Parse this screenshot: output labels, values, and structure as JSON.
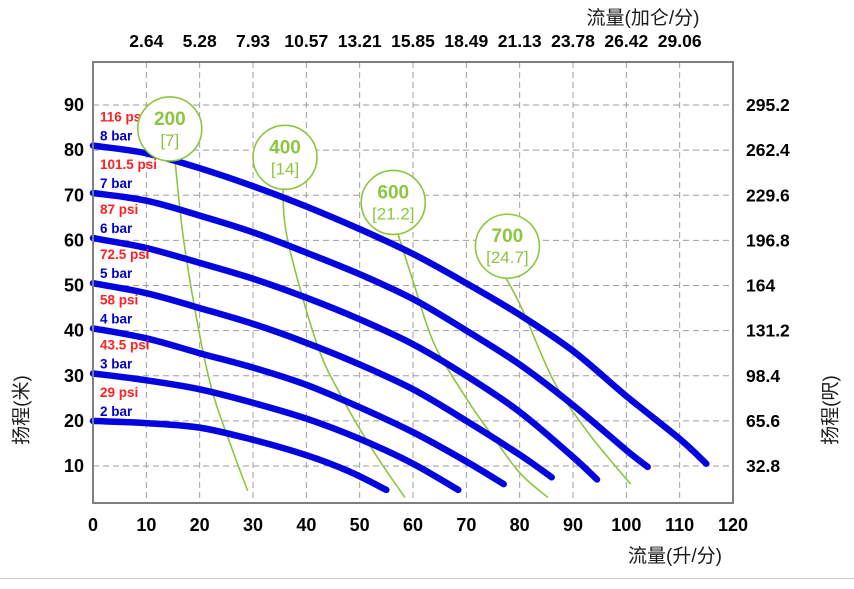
{
  "chart_data": {
    "type": "line",
    "title": "",
    "grid": "dashed",
    "legend_position": "none",
    "x_axis_bottom": {
      "label": "流量(升/分)",
      "min": 0,
      "max": 120,
      "ticks": [
        "0",
        "10",
        "20",
        "30",
        "40",
        "50",
        "60",
        "70",
        "80",
        "90",
        "100",
        "110",
        "120"
      ],
      "tick_values": [
        0,
        10,
        20,
        30,
        40,
        50,
        60,
        70,
        80,
        90,
        100,
        110,
        120
      ]
    },
    "x_axis_top": {
      "label": "流量(加仑/分)",
      "ticks": [
        "2.64",
        "5.28",
        "7.93",
        "10.57",
        "13.21",
        "15.85",
        "18.49",
        "21.13",
        "23.78",
        "26.42",
        "29.06"
      ],
      "tick_at_lpm": [
        10,
        20,
        30,
        40,
        50,
        60,
        70,
        80,
        90,
        100,
        110
      ]
    },
    "y_axis_left": {
      "label": "扬程(米)",
      "ticks": [
        "10",
        "20",
        "30",
        "40",
        "50",
        "60",
        "70",
        "80",
        "90"
      ],
      "tick_values": [
        10,
        20,
        30,
        40,
        50,
        60,
        70,
        80,
        90
      ]
    },
    "y_axis_right": {
      "label": "扬程(呎)",
      "ticks": [
        "32.8",
        "65.6",
        "98.4",
        "131.2",
        "164",
        "196.8",
        "229.6",
        "262.4",
        "295.2"
      ],
      "tick_at_m": [
        10,
        20,
        30,
        40,
        50,
        60,
        70,
        80,
        90
      ]
    },
    "pump_curves": [
      {
        "psi_label": "116 psi",
        "bar_label": "8 bar",
        "points": [
          [
            0,
            81
          ],
          [
            10,
            79.3
          ],
          [
            20,
            76
          ],
          [
            30,
            72
          ],
          [
            40,
            67.5
          ],
          [
            50,
            62.5
          ],
          [
            60,
            57
          ],
          [
            70,
            50.5
          ],
          [
            80,
            43.5
          ],
          [
            90,
            35.5
          ],
          [
            100,
            25.5
          ],
          [
            110,
            16
          ],
          [
            115,
            10.5
          ]
        ]
      },
      {
        "psi_label": "101.5 psi",
        "bar_label": "7 bar",
        "points": [
          [
            0,
            70.5
          ],
          [
            10,
            68.8
          ],
          [
            20,
            65.5
          ],
          [
            30,
            61.8
          ],
          [
            40,
            57.3
          ],
          [
            50,
            52.5
          ],
          [
            60,
            47
          ],
          [
            70,
            40
          ],
          [
            80,
            32.5
          ],
          [
            90,
            23.5
          ],
          [
            100,
            13.5
          ],
          [
            104,
            9.8
          ]
        ]
      },
      {
        "psi_label": "87 psi",
        "bar_label": "6 bar",
        "points": [
          [
            0,
            60.5
          ],
          [
            10,
            58.3
          ],
          [
            20,
            55
          ],
          [
            30,
            51.5
          ],
          [
            40,
            47.3
          ],
          [
            50,
            42.5
          ],
          [
            60,
            37
          ],
          [
            70,
            30
          ],
          [
            80,
            22
          ],
          [
            90,
            12
          ],
          [
            94.5,
            7
          ]
        ]
      },
      {
        "psi_label": "72.5 psi",
        "bar_label": "5 bar",
        "points": [
          [
            0,
            50.5
          ],
          [
            10,
            48.3
          ],
          [
            20,
            45
          ],
          [
            30,
            41.5
          ],
          [
            40,
            37.3
          ],
          [
            50,
            32.5
          ],
          [
            60,
            27
          ],
          [
            70,
            20
          ],
          [
            80,
            12.5
          ],
          [
            86,
            7.5
          ]
        ]
      },
      {
        "psi_label": "58 psi",
        "bar_label": "4 bar",
        "points": [
          [
            0,
            40.5
          ],
          [
            10,
            38.3
          ],
          [
            20,
            35
          ],
          [
            30,
            31.8
          ],
          [
            40,
            28
          ],
          [
            50,
            23
          ],
          [
            60,
            17.5
          ],
          [
            70,
            11
          ],
          [
            77,
            6
          ]
        ]
      },
      {
        "psi_label": "43.5 psi",
        "bar_label": "3 bar",
        "points": [
          [
            0,
            30.5
          ],
          [
            10,
            29
          ],
          [
            20,
            27
          ],
          [
            30,
            24
          ],
          [
            40,
            20.5
          ],
          [
            50,
            16
          ],
          [
            60,
            10.5
          ],
          [
            68.5,
            4.7
          ]
        ]
      },
      {
        "psi_label": "29 psi",
        "bar_label": "2 bar",
        "points": [
          [
            0,
            20
          ],
          [
            10,
            19.5
          ],
          [
            20,
            18.5
          ],
          [
            30,
            15.8
          ],
          [
            40,
            12.4
          ],
          [
            48,
            8.8
          ],
          [
            55,
            4.7
          ]
        ]
      }
    ],
    "air_consumption_lines": [
      {
        "label": "200",
        "sub_label": "[7]",
        "circle_at": [
          14.4,
          84.7
        ],
        "points": [
          [
            15.4,
            77.5
          ],
          [
            17,
            60
          ],
          [
            20,
            39
          ],
          [
            22.5,
            26
          ],
          [
            26,
            14
          ],
          [
            29,
            4.5
          ]
        ]
      },
      {
        "label": "400",
        "sub_label": "[14]",
        "circle_at": [
          36.0,
          78.4
        ],
        "points": [
          [
            35.6,
            71.3
          ],
          [
            36.5,
            60
          ],
          [
            42,
            37
          ],
          [
            47,
            24.5
          ],
          [
            53,
            12.5
          ],
          [
            58.5,
            3
          ]
        ]
      },
      {
        "label": "600",
        "sub_label": "[21.2]",
        "circle_at": [
          56.3,
          68.4
        ],
        "points": [
          [
            57.2,
            61.3
          ],
          [
            60,
            51
          ],
          [
            64,
            37
          ],
          [
            70,
            25
          ],
          [
            75,
            16.5
          ],
          [
            80,
            8.5
          ],
          [
            85.3,
            3
          ]
        ]
      },
      {
        "label": "700",
        "sub_label": "[24.7]",
        "circle_at": [
          77.7,
          58.7
        ],
        "points": [
          [
            77.5,
            51.5
          ],
          [
            80.5,
            44.7
          ],
          [
            86.3,
            29
          ],
          [
            92,
            18.7
          ],
          [
            96.5,
            12
          ],
          [
            100.8,
            6
          ]
        ]
      }
    ]
  },
  "colors": {
    "pump_curve": "#0404df",
    "psi_text": "#ff2020",
    "bar_text": "#0000cd",
    "air_green": "#8cc63f",
    "grid": "#9e9e9e",
    "border": "#7f7f7f",
    "tick_text": "#000000"
  }
}
